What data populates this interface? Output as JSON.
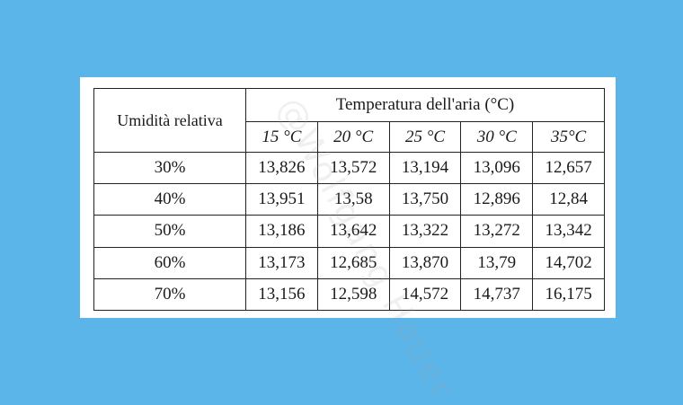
{
  "table": {
    "row_header": "Umidità relativa",
    "group_header": "Temperatura dell'aria (°C)",
    "columns": [
      "15 °C",
      "20 °C",
      "25 °C",
      "30 °C",
      "35°C"
    ],
    "rows": [
      {
        "label": "30%",
        "values": [
          "13,826",
          "13,572",
          "13,194",
          "13,096",
          "12,657"
        ]
      },
      {
        "label": "40%",
        "values": [
          "13,951",
          "13,58",
          "13,750",
          "12,896",
          "12,84"
        ]
      },
      {
        "label": "50%",
        "values": [
          "13,186",
          "13,642",
          "13,322",
          "13,272",
          "13,342"
        ]
      },
      {
        "label": "60%",
        "values": [
          "13,173",
          "12,685",
          "13,870",
          "13,79",
          "14,702"
        ]
      },
      {
        "label": "70%",
        "values": [
          "13,156",
          "12,598",
          "14,572",
          "14,737",
          "16,175"
        ]
      }
    ]
  },
  "watermark": "@Wolfgang Hauer"
}
